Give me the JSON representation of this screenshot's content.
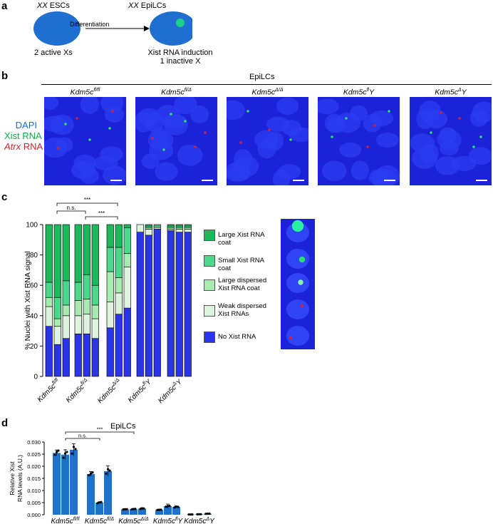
{
  "panels": {
    "a": "a",
    "b": "b",
    "c": "c",
    "d": "d"
  },
  "panel_a": {
    "esc_label_italic": "XX",
    "esc_label_rest": " ESCs",
    "epilc_label_italic": "XX",
    "epilc_label_rest": " EpiLCs",
    "arrow_label": "Differentiation",
    "esc_caption": "2 active Xs",
    "epilc_caption_line1": "Xist RNA induction",
    "epilc_caption_line2": "1 inactive X",
    "cell_color": "#1f6fd0",
    "dot_color": "#1fd08a"
  },
  "panel_b": {
    "header": "EpiLCs",
    "row_label_dapi": "DAPI",
    "row_label_xist": "Xist RNA",
    "row_label_atrx_italic": "Atrx",
    "row_label_atrx_rest": " RNA",
    "dapi_color": "#1f6fd0",
    "xist_color": "#15a84a",
    "atrx_color": "#c8262d",
    "images": [
      {
        "base": "Kdm5c",
        "sup": "fl/fl",
        "suffix": ""
      },
      {
        "base": "Kdm5c",
        "sup": "fl/Δ",
        "suffix": ""
      },
      {
        "base": "Kdm5c",
        "sup": "Δ/Δ",
        "suffix": ""
      },
      {
        "base": "Kdm5c",
        "sup": "fl",
        "suffix": "Y"
      },
      {
        "base": "Kdm5c",
        "sup": "Δ",
        "suffix": "Y"
      }
    ]
  },
  "panel_c": {
    "ylabel": "% Nuclei with Xist RNA signal",
    "yticks": [
      "0",
      "20",
      "40",
      "60",
      "80",
      "100"
    ],
    "sig_ns": "n.s.",
    "sig_star1": "***",
    "sig_star2": "***",
    "legend": [
      {
        "label": "Large Xist RNA coat",
        "color": "#1cb85a"
      },
      {
        "label": "Small Xist RNA coat",
        "color": "#4cd88a"
      },
      {
        "label": "Large dispersed Xist RNA coat",
        "color": "#a8eab0"
      },
      {
        "label": "Weak dispersed Xist RNAs",
        "color": "#ddf3de"
      },
      {
        "label": "No Xist RNA",
        "color": "#2b35e8"
      }
    ],
    "xlabels": [
      {
        "base": "Kdm5c",
        "sup": "fl/fl",
        "suffix": ""
      },
      {
        "base": "Kdm5c",
        "sup": "fl/Δ",
        "suffix": ""
      },
      {
        "base": "Kdm5c",
        "sup": "Δ/Δ",
        "suffix": ""
      },
      {
        "base": "Kdm5c",
        "sup": "fl",
        "suffix": "Y"
      },
      {
        "base": "Kdm5c",
        "sup": "Δ",
        "suffix": "Y"
      }
    ]
  },
  "panel_d": {
    "title": "EpiLCs",
    "ylabel_line1": "Relative Xist",
    "ylabel_line2": "RNA levels (A.U.)",
    "yticks": [
      "0.000",
      "0.005",
      "0.010",
      "0.015",
      "0.020",
      "0.025",
      "0.030"
    ],
    "sig_ns": "n.s.",
    "sig_star": "***",
    "bar_color": "#1e73c8"
  },
  "chart_data": [
    {
      "type": "bar",
      "stacked": true,
      "ylabel": "% Nuclei with Xist RNA signal",
      "ylim": [
        0,
        100
      ],
      "groups": [
        "Kdm5c fl/fl",
        "Kdm5c fl/Δ",
        "Kdm5c Δ/Δ",
        "Kdm5c fl Y",
        "Kdm5c Δ Y"
      ],
      "replicates_per_group": 3,
      "series": [
        {
          "name": "No Xist RNA",
          "values": [
            33,
            21,
            25,
            28,
            28,
            25,
            32,
            41,
            45,
            95,
            93,
            97,
            96,
            95,
            95
          ]
        },
        {
          "name": "Weak dispersed Xist RNAs",
          "values": [
            13,
            12,
            15,
            12,
            13,
            13,
            17,
            14,
            27,
            5,
            4,
            1,
            1,
            2,
            2
          ]
        },
        {
          "name": "Large dispersed Xist RNA coat",
          "values": [
            6,
            5,
            7,
            10,
            10,
            9,
            20,
            10,
            9,
            0,
            1,
            1,
            1,
            1,
            1
          ]
        },
        {
          "name": "Small Xist RNA coat",
          "values": [
            10,
            14,
            16,
            12,
            16,
            13,
            16,
            20,
            17,
            0,
            1,
            1,
            1,
            1,
            1
          ]
        },
        {
          "name": "Large Xist RNA coat",
          "values": [
            38,
            48,
            37,
            38,
            33,
            40,
            15,
            15,
            2,
            0,
            1,
            0,
            1,
            1,
            1
          ]
        }
      ],
      "annotations": [
        "n.s.",
        "***",
        "***"
      ]
    },
    {
      "type": "bar",
      "title": "EpiLCs",
      "ylabel": "Relative Xist RNA levels (A.U.)",
      "ylim": [
        0,
        0.03
      ],
      "groups": [
        "Kdm5c fl/fl",
        "Kdm5c fl/Δ",
        "Kdm5c Δ/Δ",
        "Kdm5c fl Y",
        "Kdm5c Δ Y"
      ],
      "replicates_per_group": 3,
      "values": [
        0.0255,
        0.0248,
        0.0268,
        0.0168,
        0.005,
        0.018,
        0.0022,
        0.0023,
        0.0025,
        0.002,
        0.0035,
        0.0032,
        0.0001,
        0.0002,
        0.0004
      ],
      "errors": [
        0.0012,
        0.002,
        0.0025,
        0.001,
        0.0003,
        0.0022,
        0.0003,
        0.0003,
        0.0004,
        0.0003,
        0.0009,
        0.0004,
        0.0001,
        0.0001,
        0.0002
      ],
      "annotations": [
        "n.s.",
        "***"
      ]
    }
  ]
}
